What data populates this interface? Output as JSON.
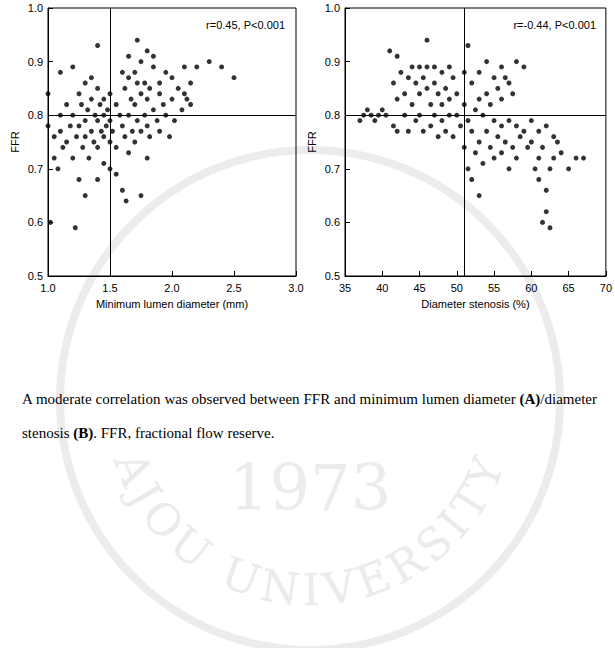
{
  "chart_data": [
    {
      "type": "scatter",
      "x_label": "Minimum lumen diameter (mm)",
      "y_label": "FFR",
      "annotation": "r=0.45, P<0.001",
      "color": "#000000",
      "marker": "circle",
      "xlim": [
        1.0,
        3.0
      ],
      "xticks": [
        {
          "value": 1.0,
          "label": "1.0"
        },
        {
          "value": 1.5,
          "label": "1.5"
        },
        {
          "value": 2.0,
          "label": "2.0"
        },
        {
          "value": 2.5,
          "label": "2.5"
        },
        {
          "value": 3.0,
          "label": "3.0"
        }
      ],
      "ylim": [
        0.5,
        1.0
      ],
      "yticks": [
        0.5,
        0.6,
        0.7,
        0.8,
        0.9,
        {
          "value": 1.0,
          "label": "1.0"
        }
      ],
      "vlines": [
        1.5
      ],
      "hlines": [
        0.8
      ],
      "grid": false,
      "x": [
        1.0,
        1.0,
        1.02,
        1.05,
        1.05,
        1.08,
        1.1,
        1.1,
        1.1,
        1.12,
        1.15,
        1.15,
        1.18,
        1.2,
        1.2,
        1.2,
        1.22,
        1.23,
        1.25,
        1.25,
        1.25,
        1.27,
        1.28,
        1.3,
        1.3,
        1.3,
        1.3,
        1.32,
        1.33,
        1.35,
        1.35,
        1.35,
        1.37,
        1.38,
        1.4,
        1.4,
        1.4,
        1.4,
        1.4,
        1.42,
        1.43,
        1.45,
        1.45,
        1.45,
        1.45,
        1.47,
        1.48,
        1.5,
        1.5,
        1.5,
        1.5,
        1.52,
        1.55,
        1.55,
        1.55,
        1.58,
        1.6,
        1.6,
        1.6,
        1.62,
        1.62,
        1.63,
        1.65,
        1.65,
        1.65,
        1.65,
        1.67,
        1.68,
        1.7,
        1.7,
        1.7,
        1.72,
        1.72,
        1.72,
        1.75,
        1.75,
        1.75,
        1.75,
        1.78,
        1.78,
        1.8,
        1.8,
        1.8,
        1.8,
        1.82,
        1.82,
        1.85,
        1.85,
        1.85,
        1.88,
        1.9,
        1.9,
        1.9,
        1.93,
        1.95,
        1.95,
        1.98,
        2.0,
        2.0,
        2.02,
        2.05,
        2.08,
        2.1,
        2.1,
        2.12,
        2.15,
        2.15,
        2.2,
        2.3,
        2.4,
        2.5
      ],
      "values": [
        0.84,
        0.78,
        0.6,
        0.76,
        0.72,
        0.7,
        0.88,
        0.8,
        0.77,
        0.74,
        0.82,
        0.75,
        0.78,
        0.89,
        0.8,
        0.72,
        0.59,
        0.76,
        0.84,
        0.78,
        0.68,
        0.82,
        0.74,
        0.86,
        0.79,
        0.76,
        0.65,
        0.81,
        0.72,
        0.87,
        0.83,
        0.77,
        0.75,
        0.8,
        0.93,
        0.85,
        0.79,
        0.74,
        0.68,
        0.82,
        0.77,
        0.83,
        0.8,
        0.76,
        0.71,
        0.78,
        0.81,
        0.84,
        0.79,
        0.75,
        0.7,
        0.77,
        0.82,
        0.74,
        0.69,
        0.8,
        0.88,
        0.78,
        0.66,
        0.85,
        0.76,
        0.64,
        0.91,
        0.87,
        0.8,
        0.73,
        0.83,
        0.77,
        0.88,
        0.82,
        0.75,
        0.94,
        0.86,
        0.79,
        0.9,
        0.84,
        0.77,
        0.65,
        0.86,
        0.8,
        0.92,
        0.83,
        0.78,
        0.72,
        0.85,
        0.76,
        0.91,
        0.89,
        0.81,
        0.79,
        0.86,
        0.84,
        0.77,
        0.82,
        0.88,
        0.8,
        0.76,
        0.87,
        0.83,
        0.79,
        0.85,
        0.81,
        0.89,
        0.84,
        0.83,
        0.86,
        0.82,
        0.89,
        0.9,
        0.89,
        0.87
      ]
    },
    {
      "type": "scatter",
      "x_label": "Diameter stenosis (%)",
      "y_label": "FFR",
      "annotation": "r=-0.44, P<0.001",
      "color": "#000000",
      "marker": "circle",
      "xlim": [
        35,
        70
      ],
      "xticks": [
        35,
        40,
        45,
        50,
        55,
        60,
        65,
        70
      ],
      "ylim": [
        0.5,
        1.0
      ],
      "yticks": [
        0.5,
        0.6,
        0.7,
        0.8,
        0.9,
        {
          "value": 1.0,
          "label": "1.0"
        }
      ],
      "vlines": [
        51
      ],
      "hlines": [
        0.8
      ],
      "grid": false,
      "x": [
        37,
        37.5,
        38,
        38.5,
        39,
        39.5,
        40,
        40.5,
        41,
        41.5,
        41.5,
        42,
        42,
        42,
        42.5,
        43,
        43,
        43.5,
        43.5,
        44,
        44,
        44.5,
        44.5,
        45,
        45,
        45,
        45.5,
        45.5,
        46,
        46,
        46,
        46.5,
        46.5,
        47,
        47,
        47,
        47.5,
        47.5,
        48,
        48,
        48,
        48.5,
        48.5,
        49,
        49,
        49,
        49.5,
        49.5,
        50,
        50,
        50.5,
        51,
        51,
        51,
        51.5,
        51.5,
        51.5,
        52,
        52,
        52,
        52.5,
        52.5,
        53,
        53,
        53,
        53,
        53.5,
        53.5,
        54,
        54,
        54,
        54.5,
        54.5,
        55,
        55,
        55,
        55.5,
        55.5,
        56,
        56,
        56,
        56,
        56.5,
        56.5,
        57,
        57,
        57,
        57.5,
        57.5,
        58,
        58,
        58,
        58.5,
        59,
        59,
        59.5,
        60,
        60,
        60.5,
        61,
        61,
        61,
        61.5,
        61.5,
        62,
        62,
        62,
        62.5,
        62.5,
        63,
        63,
        63.5,
        64,
        65,
        66,
        67
      ],
      "values": [
        0.79,
        0.8,
        0.81,
        0.8,
        0.79,
        0.8,
        0.81,
        0.8,
        0.92,
        0.86,
        0.78,
        0.91,
        0.83,
        0.77,
        0.88,
        0.84,
        0.8,
        0.87,
        0.77,
        0.89,
        0.82,
        0.86,
        0.79,
        0.89,
        0.84,
        0.8,
        0.87,
        0.77,
        0.94,
        0.89,
        0.85,
        0.82,
        0.78,
        0.89,
        0.86,
        0.8,
        0.84,
        0.76,
        0.88,
        0.82,
        0.79,
        0.85,
        0.77,
        0.89,
        0.83,
        0.8,
        0.87,
        0.76,
        0.84,
        0.8,
        0.78,
        0.88,
        0.82,
        0.74,
        0.93,
        0.79,
        0.7,
        0.86,
        0.77,
        0.68,
        0.81,
        0.73,
        0.88,
        0.83,
        0.75,
        0.65,
        0.8,
        0.71,
        0.9,
        0.84,
        0.77,
        0.82,
        0.74,
        0.87,
        0.79,
        0.72,
        0.85,
        0.76,
        0.89,
        0.83,
        0.78,
        0.73,
        0.87,
        0.75,
        0.86,
        0.79,
        0.7,
        0.84,
        0.74,
        0.9,
        0.78,
        0.72,
        0.76,
        0.89,
        0.77,
        0.74,
        0.79,
        0.75,
        0.7,
        0.77,
        0.72,
        0.68,
        0.74,
        0.6,
        0.78,
        0.66,
        0.62,
        0.59,
        0.7,
        0.76,
        0.72,
        0.75,
        0.73,
        0.7,
        0.72,
        0.72
      ]
    }
  ],
  "caption": [
    {
      "text": "A moderate correlation was observed between FFR and minimum lumen diameter "
    },
    {
      "text": "(A)",
      "bold": true
    },
    {
      "text": "/diameter stenosis "
    },
    {
      "text": "(B)",
      "bold": true
    },
    {
      "text": ". FFR, fractional flow reserve."
    }
  ],
  "watermark": {
    "arc": "AJOU UNIVERSITY",
    "year": "1973"
  }
}
